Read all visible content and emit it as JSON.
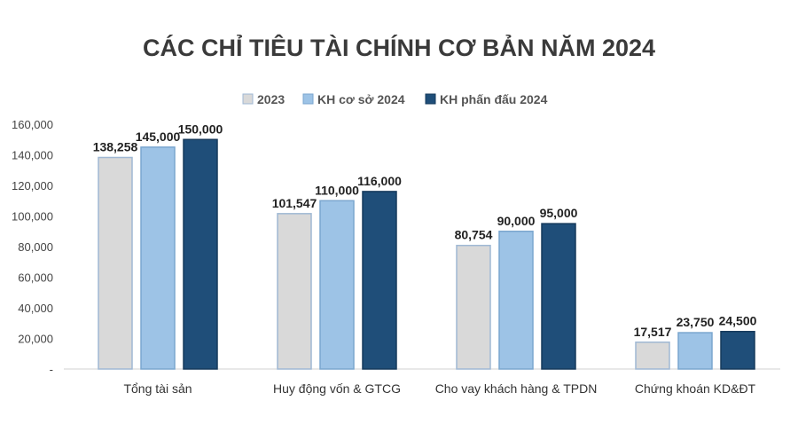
{
  "chart_data": {
    "type": "bar",
    "title": "CÁC CHỈ TIÊU TÀI CHÍNH CƠ BẢN NĂM 2024",
    "categories": [
      "Tổng tài sản",
      "Huy động vốn & GTCG",
      "Cho vay khách hàng & TPDN",
      "Chứng khoán KD&ĐT"
    ],
    "series": [
      {
        "name": "2023",
        "color": "#d9d9d9",
        "stroke": "#9fb8d4",
        "values": [
          138258,
          101547,
          80754,
          17517
        ],
        "labels": [
          "138,258",
          "101,547",
          "80,754",
          "17,517"
        ]
      },
      {
        "name": "KH cơ sở 2024",
        "color": "#9dc3e6",
        "stroke": "#7aa6cf",
        "values": [
          145000,
          110000,
          90000,
          23750
        ],
        "labels": [
          "145,000",
          "110,000",
          "90,000",
          "23,750"
        ]
      },
      {
        "name": "KH phấn đấu 2024",
        "color": "#1f4e79",
        "stroke": "#163a5c",
        "values": [
          150000,
          116000,
          95000,
          24500
        ],
        "labels": [
          "150,000",
          "116,000",
          "95,000",
          "24,500"
        ]
      }
    ],
    "y_ticks": [
      0,
      20000,
      40000,
      60000,
      80000,
      100000,
      120000,
      140000,
      160000
    ],
    "y_tick_labels": [
      "-",
      "20,000",
      "40,000",
      "60,000",
      "80,000",
      "100,000",
      "120,000",
      "140,000",
      "160,000"
    ],
    "ylim": [
      0,
      160000
    ],
    "xlabel": "",
    "ylabel": "",
    "legend_position": "top",
    "grid": false
  }
}
